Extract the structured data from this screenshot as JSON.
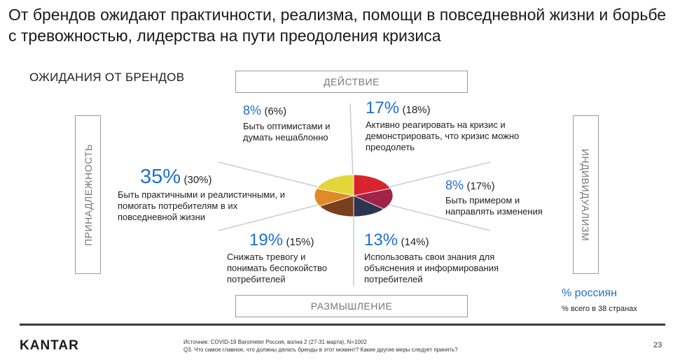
{
  "title": "От брендов ожидают практичности, реализма, помощи в повседневной жизни и борьбе с тревожностью, лидерства на пути преодоления кризиса",
  "section_label": "ОЖИДАНИЯ ОТ БРЕНДОВ",
  "axes": {
    "top": "ДЕЙСТВИЕ",
    "bottom": "РАЗМЫШЛЕНИЕ",
    "left": "ПРИНАДЛЕЖНОСТЬ",
    "right": "ИНДИВИДУАЛИЗМ"
  },
  "items": [
    {
      "pct": "8%",
      "prev": "(6%)",
      "text": "Быть оптимистами и думать нешаблонно"
    },
    {
      "pct": "17%",
      "prev": "(18%)",
      "text": "Активно реагировать на кризис и демонстрировать, что кризис можно преодолеть"
    },
    {
      "pct": "8%",
      "prev": "(17%)",
      "text": "Быть примером и направлять изменения"
    },
    {
      "pct": "13%",
      "prev": "(14%)",
      "text": "Использовать свои знания для объяснения и информирования потребителей"
    },
    {
      "pct": "19%",
      "prev": "(15%)",
      "text": "Снижать тревогу и понимать беспокойство потребителей"
    },
    {
      "pct": "35%",
      "prev": "(30%)",
      "text": "Быть практичными и реалистичными, и помогать потребителям в их повседневной жизни"
    }
  ],
  "wheel_colors": {
    "top_left": "#e3d63a",
    "top_right": "#d9242f",
    "right": "#a2234a",
    "bottom_right": "#2c3550",
    "bottom_left": "#7a3f1d",
    "left": "#e08a2a"
  },
  "legend": {
    "russia": "% россиян",
    "all": "% всего в 38 странах"
  },
  "footer": {
    "logo": "KANTAR",
    "source_line1": "Источник: COVID-19 Barometer Россия, волна 2 (27-31 марта), N=1002",
    "source_line2": "Q3. Что самое главное, что должны делать бренды в этот момент? Какие другие меры следует принять?",
    "page": "23"
  }
}
